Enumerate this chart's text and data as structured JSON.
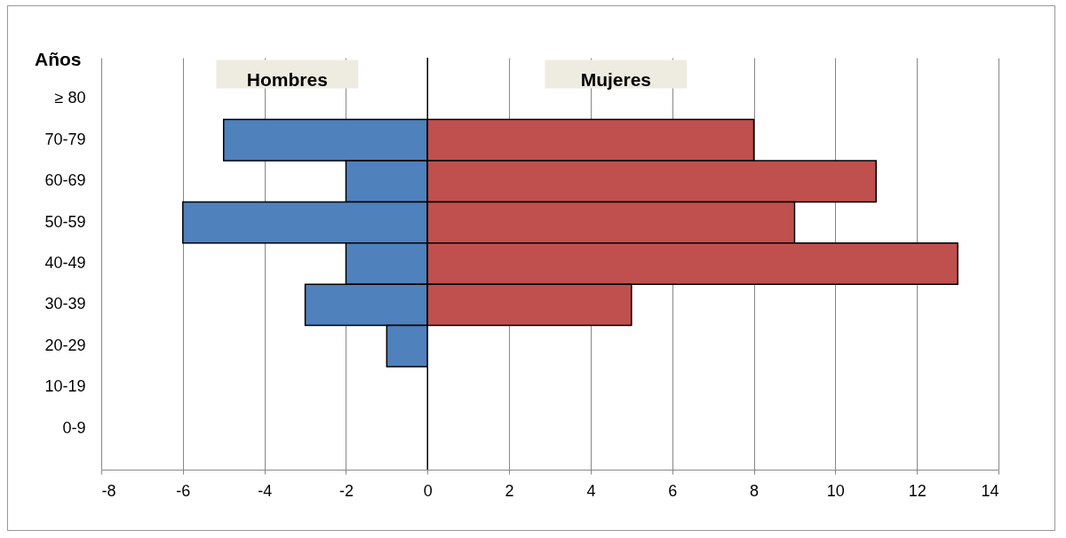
{
  "chart_data": {
    "type": "bar",
    "orientation": "horizontal",
    "stacked": true,
    "ylabel": "Años",
    "categories": [
      "≥ 80",
      "70-79",
      "60-69",
      "50-59",
      "40-49",
      "30-39",
      "20-29",
      "10-19",
      "0-9"
    ],
    "series": [
      {
        "name": "Hombres",
        "color": "#4f81bd",
        "values": [
          null,
          -5,
          -2,
          -6,
          -2,
          -3,
          -1,
          null,
          null
        ]
      },
      {
        "name": "Mujeres",
        "color": "#c0504d",
        "values": [
          null,
          8,
          11,
          9,
          13,
          5,
          null,
          null,
          null
        ]
      }
    ],
    "xlim": [
      -8,
      14
    ],
    "xticks": [
      -8,
      -6,
      -4,
      -2,
      0,
      2,
      4,
      6,
      8,
      10,
      12,
      14
    ],
    "grid": "x",
    "legend": "top"
  }
}
